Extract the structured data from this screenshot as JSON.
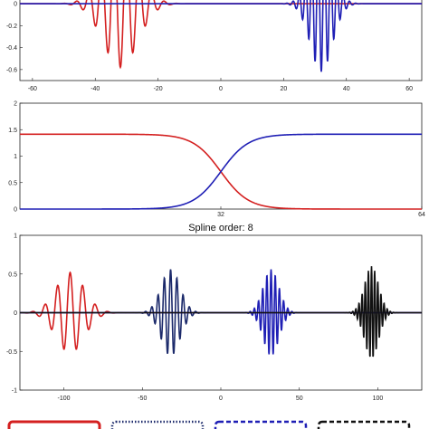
{
  "colors": {
    "red": "#d42020",
    "blue": "#1f1fb5",
    "navy": "#1c2a6b",
    "black": "#111111"
  },
  "chart_data": [
    {
      "type": "line",
      "title": "",
      "xlim": [
        -64,
        64
      ],
      "ylim": [
        -0.7,
        0.05
      ],
      "xticks": [
        "-60",
        "-40",
        "-20",
        "0",
        "20",
        "40",
        "60"
      ],
      "xtick_values": [
        -60,
        -40,
        -20,
        0,
        20,
        40,
        60
      ],
      "yticks": [
        "0",
        "-0.2",
        "-0.4",
        "-0.6"
      ],
      "ytick_values": [
        0,
        -0.2,
        -0.4,
        -0.6
      ],
      "series": [
        {
          "color": "red",
          "kind": "wavelet",
          "center": -32,
          "amp": 0.58,
          "freq": 1.0,
          "width": 5.5
        },
        {
          "color": "blue",
          "kind": "wavelet",
          "center": 32,
          "amp": 0.62,
          "freq": 2.0,
          "width": 3.5
        }
      ]
    },
    {
      "type": "line",
      "title": "",
      "xlim": [
        0,
        64
      ],
      "ylim": [
        0,
        2
      ],
      "xticks": [
        "32",
        "64"
      ],
      "xtick_values": [
        32,
        64
      ],
      "yticks": [
        "0",
        "0.5",
        "1",
        "1.5",
        "2"
      ],
      "ytick_values": [
        0,
        0.5,
        1,
        1.5,
        2
      ],
      "series": [
        {
          "color": "red",
          "kind": "falling",
          "level": 1.414,
          "center": 32,
          "scale": 2.2
        },
        {
          "color": "blue",
          "kind": "rising",
          "level": 1.414,
          "center": 32,
          "scale": 2.2
        }
      ]
    },
    {
      "type": "line",
      "title": "Spline order: 8",
      "xlim": [
        -128,
        128
      ],
      "ylim": [
        -1,
        1
      ],
      "xticks": [
        "-100",
        "-50",
        "0",
        "50",
        "100"
      ],
      "xtick_values": [
        -100,
        -50,
        0,
        50,
        100
      ],
      "yticks": [
        "1",
        "0.5",
        "0",
        "-0.5",
        "-1"
      ],
      "ytick_values": [
        1,
        0.5,
        0,
        -0.5,
        -1
      ],
      "series": [
        {
          "color": "red",
          "kind": "wavelet",
          "center": -96,
          "amp": 0.52,
          "freq": 0.5,
          "width": 9
        },
        {
          "color": "navy",
          "kind": "wavelet",
          "center": -32,
          "amp": 0.56,
          "freq": 1.0,
          "width": 6
        },
        {
          "color": "blue",
          "kind": "wavelet",
          "center": 32,
          "amp": 0.56,
          "freq": 1.5,
          "width": 5
        },
        {
          "color": "black",
          "kind": "wavelet",
          "center": 96,
          "amp": 0.6,
          "freq": 2.0,
          "width": 4.5
        }
      ]
    }
  ],
  "legend_boxes": [
    {
      "color": "red",
      "style": "solid"
    },
    {
      "color": "navy",
      "style": "dotted"
    },
    {
      "color": "blue",
      "style": "dashed"
    },
    {
      "color": "black",
      "style": "dashed"
    }
  ]
}
